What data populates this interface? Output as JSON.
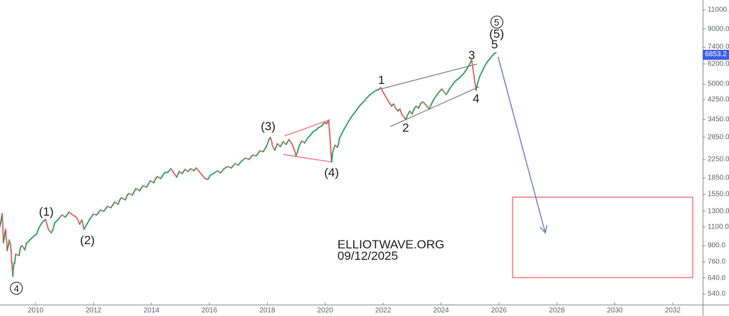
{
  "watermark": {
    "line1": "ELLIOTWAVE.ORG",
    "line2": "09/12/2025"
  },
  "price_axis": {
    "ticks": [
      11000.0,
      9000.0,
      7400.0,
      6200.0,
      5000.0,
      4250.0,
      3450.0,
      2850.0,
      2250.0,
      1850.0,
      1550.0,
      1300.0,
      1100.0,
      900.0,
      760.0,
      640.0,
      540.0
    ],
    "current_price": "6853.2",
    "current_price_value": 6853.2,
    "badge_color": "#3b5fe0",
    "scale_type": "log"
  },
  "time_axis": {
    "ticks": [
      2010,
      2012,
      2014,
      2016,
      2018,
      2020,
      2022,
      2024,
      2026,
      2028,
      2030,
      2032
    ]
  },
  "chart_data": {
    "type": "line",
    "title": "",
    "xlabel": "",
    "ylabel": "",
    "x_range_years": [
      2008.77,
      2033.68
    ],
    "y_range_log": [
      482,
      12228
    ],
    "grid": false,
    "legend": "none",
    "colors": {
      "up": "#1f9a55",
      "down": "#e05858",
      "trendline_gray": "#7b7b7b",
      "drawing_red": "#f7797d",
      "arrow_blue": "#6379cd"
    },
    "series": [
      [
        2008.77,
        1106
      ],
      [
        2008.85,
        1268
      ],
      [
        2008.89,
        930
      ],
      [
        2008.97,
        1073
      ],
      [
        2009.02,
        856
      ],
      [
        2009.09,
        958
      ],
      [
        2009.14,
        902
      ],
      [
        2009.21,
        652
      ],
      [
        2009.31,
        824
      ],
      [
        2009.43,
        812
      ],
      [
        2009.53,
        902
      ],
      [
        2009.63,
        863
      ],
      [
        2009.73,
        937
      ],
      [
        2009.85,
        972
      ],
      [
        2009.98,
        1010
      ],
      [
        2010.1,
        1082
      ],
      [
        2010.22,
        1149
      ],
      [
        2010.34,
        1194
      ],
      [
        2010.44,
        1073
      ],
      [
        2010.54,
        1033
      ],
      [
        2010.66,
        1149
      ],
      [
        2010.79,
        1194
      ],
      [
        2010.91,
        1249
      ],
      [
        2011.03,
        1221
      ],
      [
        2011.15,
        1288
      ],
      [
        2011.28,
        1249
      ],
      [
        2011.4,
        1221
      ],
      [
        2011.52,
        1132
      ],
      [
        2011.6,
        1185
      ],
      [
        2011.67,
        1073
      ],
      [
        2011.77,
        1132
      ],
      [
        2011.87,
        1194
      ],
      [
        2011.99,
        1259
      ],
      [
        2012.11,
        1249
      ],
      [
        2012.24,
        1317
      ],
      [
        2012.36,
        1298
      ],
      [
        2012.48,
        1368
      ],
      [
        2012.6,
        1348
      ],
      [
        2012.73,
        1432
      ],
      [
        2012.85,
        1400
      ],
      [
        2012.97,
        1498
      ],
      [
        2013.1,
        1465
      ],
      [
        2013.22,
        1568
      ],
      [
        2013.34,
        1544
      ],
      [
        2013.46,
        1653
      ],
      [
        2013.59,
        1616
      ],
      [
        2013.71,
        1704
      ],
      [
        2013.83,
        1678
      ],
      [
        2013.96,
        1796
      ],
      [
        2014.08,
        1756
      ],
      [
        2014.2,
        1879
      ],
      [
        2014.32,
        1837
      ],
      [
        2014.45,
        1952
      ],
      [
        2014.57,
        1966
      ],
      [
        2014.67,
        2042
      ],
      [
        2014.77,
        1952
      ],
      [
        2014.87,
        1865
      ],
      [
        2014.96,
        1981
      ],
      [
        2015.06,
        1937
      ],
      [
        2015.16,
        2027
      ],
      [
        2015.26,
        1981
      ],
      [
        2015.36,
        2042
      ],
      [
        2015.46,
        1996
      ],
      [
        2015.55,
        2057
      ],
      [
        2015.65,
        1981
      ],
      [
        2015.75,
        1908
      ],
      [
        2015.85,
        1837
      ],
      [
        2015.95,
        1823
      ],
      [
        2016.04,
        1908
      ],
      [
        2016.14,
        1937
      ],
      [
        2016.27,
        1996
      ],
      [
        2016.39,
        1952
      ],
      [
        2016.51,
        2042
      ],
      [
        2016.63,
        2089
      ],
      [
        2016.76,
        2057
      ],
      [
        2016.88,
        2153
      ],
      [
        2017.0,
        2120
      ],
      [
        2017.12,
        2218
      ],
      [
        2017.25,
        2287
      ],
      [
        2017.37,
        2252
      ],
      [
        2017.49,
        2356
      ],
      [
        2017.62,
        2338
      ],
      [
        2017.74,
        2465
      ],
      [
        2017.86,
        2447
      ],
      [
        2017.99,
        2619
      ],
      [
        2018.06,
        2782
      ],
      [
        2018.11,
        2846
      ],
      [
        2018.18,
        2599
      ],
      [
        2018.26,
        2484
      ],
      [
        2018.35,
        2659
      ],
      [
        2018.45,
        2580
      ],
      [
        2018.55,
        2720
      ],
      [
        2018.65,
        2639
      ],
      [
        2018.75,
        2782
      ],
      [
        2018.85,
        2659
      ],
      [
        2018.92,
        2522
      ],
      [
        2018.99,
        2338
      ],
      [
        2019.09,
        2580
      ],
      [
        2019.19,
        2740
      ],
      [
        2019.29,
        2679
      ],
      [
        2019.39,
        2825
      ],
      [
        2019.49,
        2912
      ],
      [
        2019.58,
        3023
      ],
      [
        2019.68,
        3069
      ],
      [
        2019.78,
        3163
      ],
      [
        2019.88,
        3211
      ],
      [
        2019.98,
        3334
      ],
      [
        2020.05,
        3284
      ],
      [
        2020.12,
        3411
      ],
      [
        2020.17,
        2782
      ],
      [
        2020.22,
        2202
      ],
      [
        2020.27,
        2465
      ],
      [
        2020.34,
        2619
      ],
      [
        2020.42,
        2560
      ],
      [
        2020.49,
        2804
      ],
      [
        2020.57,
        2956
      ],
      [
        2020.66,
        3116
      ],
      [
        2020.76,
        3284
      ],
      [
        2020.86,
        3463
      ],
      [
        2020.96,
        3622
      ],
      [
        2021.06,
        3763
      ],
      [
        2021.16,
        3938
      ],
      [
        2021.25,
        4058
      ],
      [
        2021.35,
        4183
      ],
      [
        2021.45,
        4345
      ],
      [
        2021.55,
        4478
      ],
      [
        2021.65,
        4581
      ],
      [
        2021.75,
        4685
      ],
      [
        2021.84,
        4721
      ],
      [
        2021.92,
        4830
      ],
      [
        2021.99,
        4615
      ],
      [
        2022.09,
        4378
      ],
      [
        2022.19,
        4151
      ],
      [
        2022.29,
        3967
      ],
      [
        2022.36,
        4058
      ],
      [
        2022.43,
        3878
      ],
      [
        2022.51,
        3763
      ],
      [
        2022.58,
        3849
      ],
      [
        2022.65,
        3622
      ],
      [
        2022.73,
        3515
      ],
      [
        2022.78,
        3437
      ],
      [
        2022.85,
        3622
      ],
      [
        2022.92,
        3763
      ],
      [
        2023.0,
        3650
      ],
      [
        2023.07,
        3849
      ],
      [
        2023.14,
        3967
      ],
      [
        2023.22,
        3878
      ],
      [
        2023.29,
        4058
      ],
      [
        2023.37,
        4151
      ],
      [
        2023.44,
        4058
      ],
      [
        2023.51,
        3967
      ],
      [
        2023.59,
        3849
      ],
      [
        2023.66,
        4027
      ],
      [
        2023.73,
        4214
      ],
      [
        2023.81,
        4378
      ],
      [
        2023.88,
        4512
      ],
      [
        2023.96,
        4650
      ],
      [
        2024.03,
        4757
      ],
      [
        2024.1,
        4615
      ],
      [
        2024.18,
        4478
      ],
      [
        2024.25,
        4650
      ],
      [
        2024.33,
        4830
      ],
      [
        2024.4,
        4978
      ],
      [
        2024.47,
        5131
      ],
      [
        2024.55,
        5249
      ],
      [
        2024.62,
        5328
      ],
      [
        2024.69,
        5450
      ],
      [
        2024.77,
        5574
      ],
      [
        2024.84,
        5746
      ],
      [
        2024.92,
        5966
      ],
      [
        2024.99,
        6196
      ],
      [
        2025.06,
        6483
      ],
      [
        2025.11,
        5789
      ],
      [
        2025.16,
        5170
      ],
      [
        2025.21,
        4685
      ],
      [
        2025.26,
        5054
      ],
      [
        2025.33,
        5409
      ],
      [
        2025.41,
        5703
      ],
      [
        2025.48,
        5966
      ],
      [
        2025.55,
        6196
      ],
      [
        2025.63,
        6434
      ],
      [
        2025.7,
        6581
      ],
      [
        2025.77,
        6783
      ],
      [
        2025.85,
        6939
      ],
      [
        2025.9,
        6991
      ]
    ],
    "annotations": {
      "wave_labels": [
        {
          "text": "4",
          "circled": true,
          "year": 2009.34,
          "price": 575
        },
        {
          "text": "(1)",
          "circled": false,
          "year": 2010.37,
          "price": 1286
        },
        {
          "text": "(2)",
          "circled": false,
          "year": 2011.79,
          "price": 951
        },
        {
          "text": "(3)",
          "circled": false,
          "year": 2018.03,
          "price": 3188
        },
        {
          "text": "(4)",
          "circled": false,
          "year": 2020.22,
          "price": 1951
        },
        {
          "text": "1",
          "circled": false,
          "year": 2021.94,
          "price": 5208
        },
        {
          "text": "2",
          "circled": false,
          "year": 2022.78,
          "price": 3140
        },
        {
          "text": "3",
          "circled": false,
          "year": 2025.06,
          "price": 6784
        },
        {
          "text": "4",
          "circled": false,
          "year": 2025.21,
          "price": 4280
        },
        {
          "text": "5",
          "circled": false,
          "year": 2025.85,
          "price": 7589
        },
        {
          "text": "(5)",
          "circled": false,
          "year": 2025.92,
          "price": 8510
        },
        {
          "text": "5",
          "circled": true,
          "year": 2025.92,
          "price": 9676
        }
      ],
      "trendlines": [
        {
          "name": "channel-upper",
          "color": "gray",
          "p1": [
            2021.92,
            4757
          ],
          "p2": [
            2025.24,
            6196
          ]
        },
        {
          "name": "channel-lower",
          "color": "gray",
          "p1": [
            2022.24,
            3188
          ],
          "p2": [
            2025.31,
            4867
          ]
        },
        {
          "name": "wedge-upper",
          "color": "red",
          "p1": [
            2018.6,
            2890
          ],
          "p2": [
            2020.18,
            3437
          ]
        },
        {
          "name": "wedge-lower",
          "color": "red",
          "p1": [
            2018.55,
            2375
          ],
          "p2": [
            2020.27,
            2186
          ]
        }
      ],
      "forecast_arrow": {
        "from": [
          2025.97,
          6684
        ],
        "to": [
          2027.6,
          1033
        ]
      },
      "target_zone": {
        "year_from": 2026.47,
        "year_to": 2032.69,
        "price_from": 643,
        "price_to": 1508
      }
    }
  }
}
